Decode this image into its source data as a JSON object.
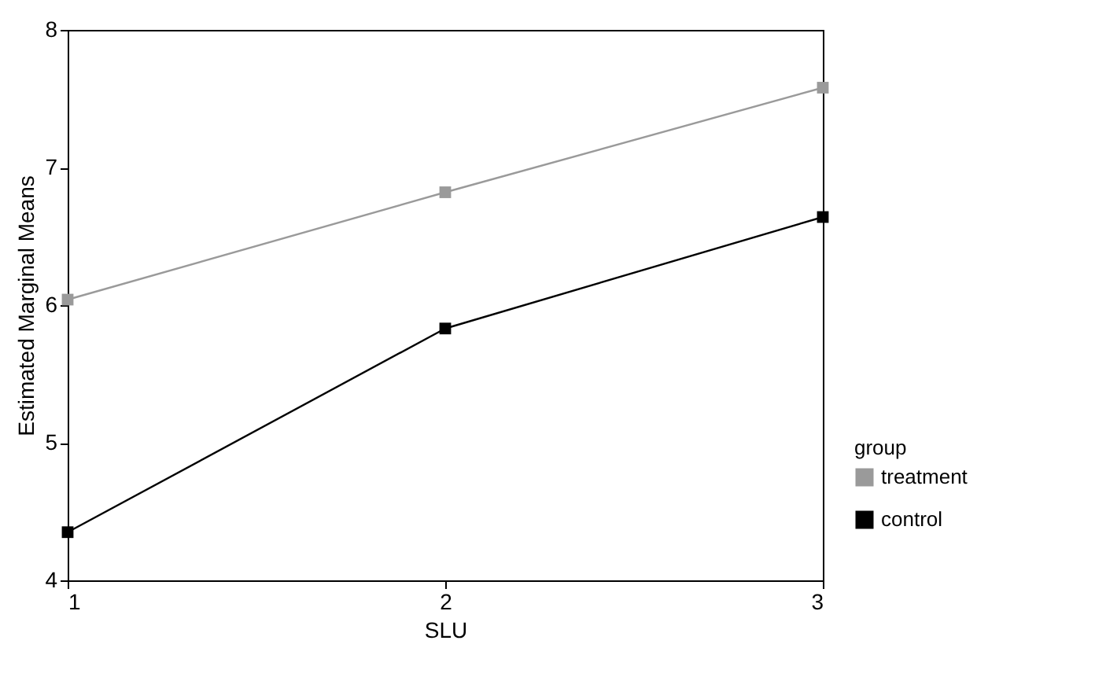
{
  "chart_data": {
    "type": "line",
    "xlabel": "SLU",
    "ylabel": "Estimated Marginal Means",
    "legend_title": "group",
    "x": [
      1,
      2,
      3
    ],
    "series": [
      {
        "name": "treatment",
        "color": "#9a9a9a",
        "values": [
          6.04,
          6.82,
          7.58
        ]
      },
      {
        "name": "control",
        "color": "#000000",
        "values": [
          4.35,
          5.83,
          6.64
        ]
      }
    ],
    "xlim": [
      1,
      3
    ],
    "xticks": [
      1,
      2,
      3
    ],
    "ylim": [
      4,
      8
    ],
    "yticks": [
      4,
      5,
      6,
      7,
      8
    ],
    "grid": false,
    "legend": "bottom right",
    "marker": "square",
    "line_style": "solid"
  }
}
